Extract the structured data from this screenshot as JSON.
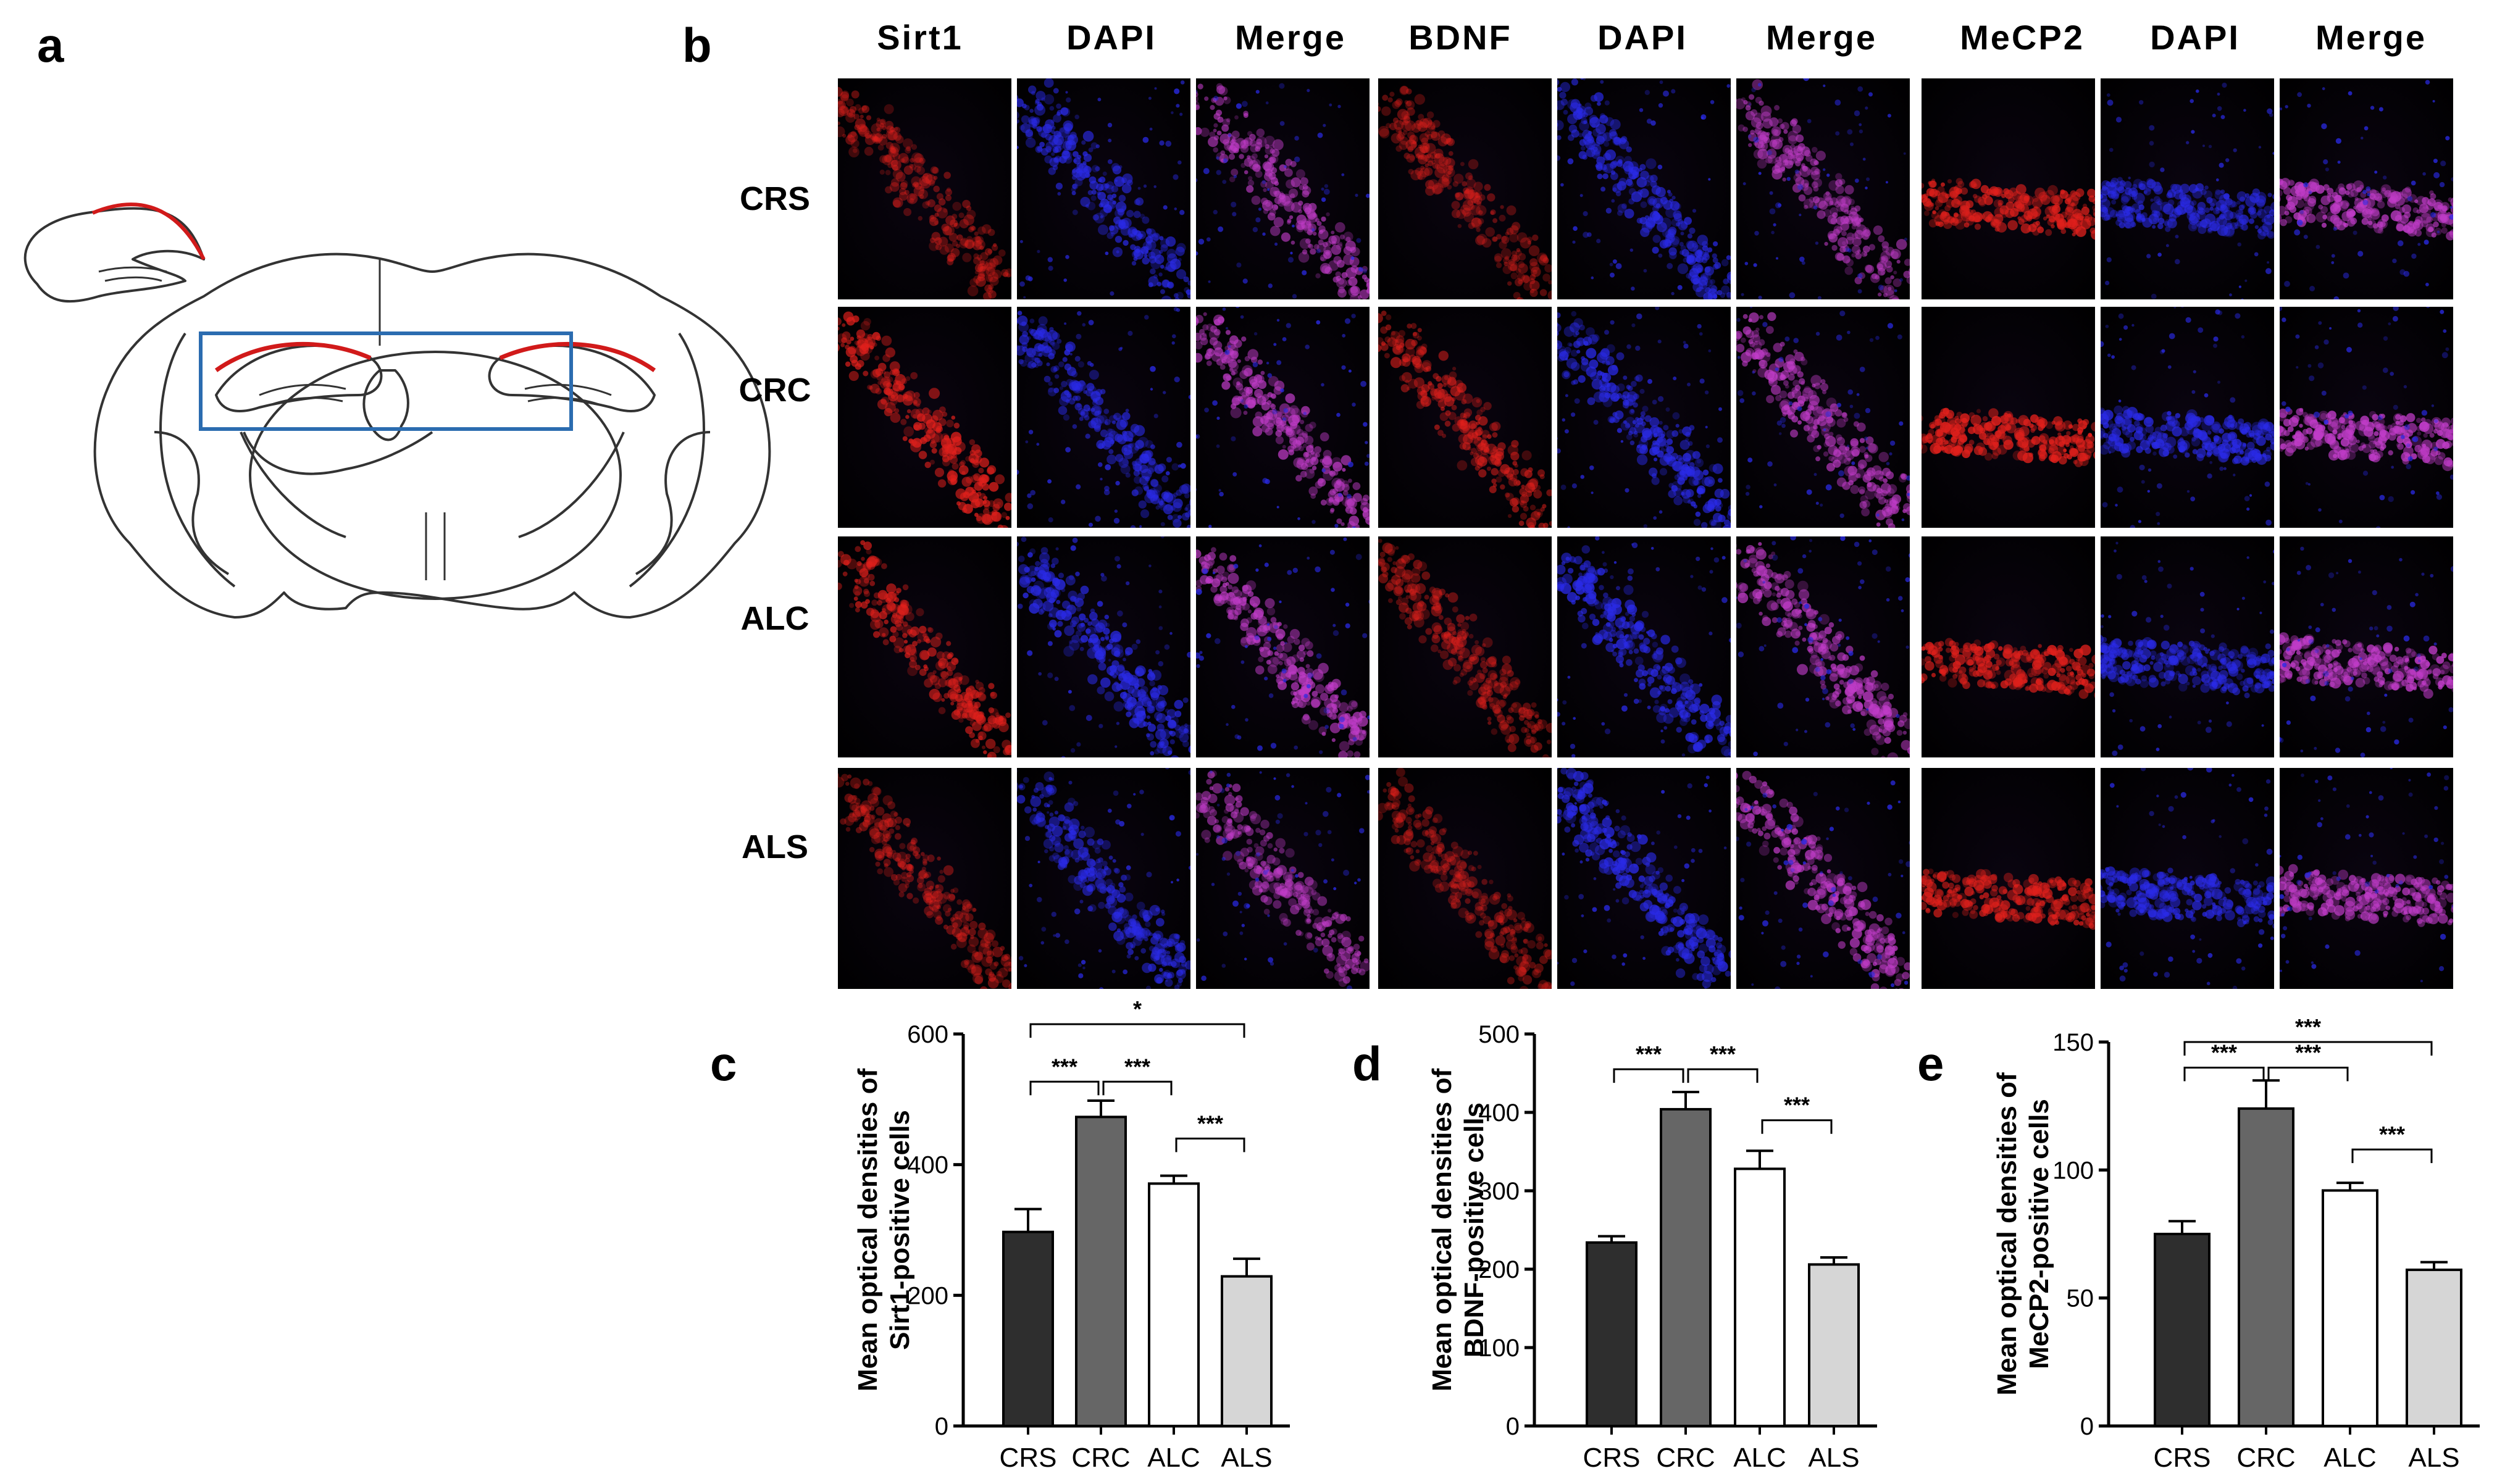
{
  "panel_a": {
    "letter": "a"
  },
  "panel_b": {
    "letter": "b",
    "columns": [
      "Sirt1",
      "DAPI",
      "Merge",
      "BDNF",
      "DAPI",
      "Merge",
      "MeCP2",
      "DAPI",
      "Merge"
    ],
    "rows": [
      "CRS",
      "CRC",
      "ALC",
      "ALS"
    ],
    "colors": {
      "red": "#e0201c",
      "blue": "#2a2ae6",
      "merge": "#c03cc8"
    }
  },
  "chart_data": [
    {
      "type": "bar",
      "panel_letter": "c",
      "categories": [
        "CRS",
        "CRC",
        "ALC",
        "ALS"
      ],
      "values": [
        297,
        473,
        371,
        229
      ],
      "errors": [
        35,
        25,
        12,
        27
      ],
      "bar_colors": [
        "#2e2e2e",
        "#666666",
        "#ffffff",
        "#d6d6d6"
      ],
      "ylabel_lines": [
        "Mean optical densities of",
        "Sirt1-positive cells"
      ],
      "ylim": [
        0,
        600
      ],
      "yticks": [
        0,
        200,
        400,
        600
      ],
      "significance": [
        {
          "from": 0,
          "to": 1,
          "label": "***",
          "y": 527
        },
        {
          "from": 1,
          "to": 2,
          "label": "***",
          "y": 527
        },
        {
          "from": 2,
          "to": 3,
          "label": "***",
          "y": 440
        },
        {
          "from": 0,
          "to": 3,
          "label": "*",
          "y": 615
        }
      ]
    },
    {
      "type": "bar",
      "panel_letter": "d",
      "categories": [
        "CRS",
        "CRC",
        "ALC",
        "ALS"
      ],
      "values": [
        234,
        404,
        328,
        206
      ],
      "errors": [
        8,
        22,
        23,
        9
      ],
      "bar_colors": [
        "#2e2e2e",
        "#666666",
        "#ffffff",
        "#d6d6d6"
      ],
      "ylabel_lines": [
        "Mean optical densities of",
        "BDNF-positive cells"
      ],
      "ylim": [
        0,
        500
      ],
      "yticks": [
        0,
        100,
        200,
        300,
        400,
        500
      ],
      "significance": [
        {
          "from": 0,
          "to": 1,
          "label": "***",
          "y": 455
        },
        {
          "from": 1,
          "to": 2,
          "label": "***",
          "y": 455
        },
        {
          "from": 2,
          "to": 3,
          "label": "***",
          "y": 390
        }
      ]
    },
    {
      "type": "bar",
      "panel_letter": "e",
      "categories": [
        "CRS",
        "CRC",
        "ALC",
        "ALS"
      ],
      "values": [
        75,
        124,
        92,
        61
      ],
      "errors": [
        5,
        11,
        3,
        3
      ],
      "bar_colors": [
        "#2e2e2e",
        "#666666",
        "#ffffff",
        "#d6d6d6"
      ],
      "ylabel_lines": [
        "Mean optical densities of",
        "MeCP2-positive cells"
      ],
      "ylim": [
        0,
        150
      ],
      "yticks": [
        0,
        50,
        100,
        150
      ],
      "significance": [
        {
          "from": 0,
          "to": 1,
          "label": "***",
          "y": 140
        },
        {
          "from": 1,
          "to": 2,
          "label": "***",
          "y": 140
        },
        {
          "from": 2,
          "to": 3,
          "label": "***",
          "y": 108
        },
        {
          "from": 0,
          "to": 3,
          "label": "***",
          "y": 150
        }
      ]
    }
  ]
}
